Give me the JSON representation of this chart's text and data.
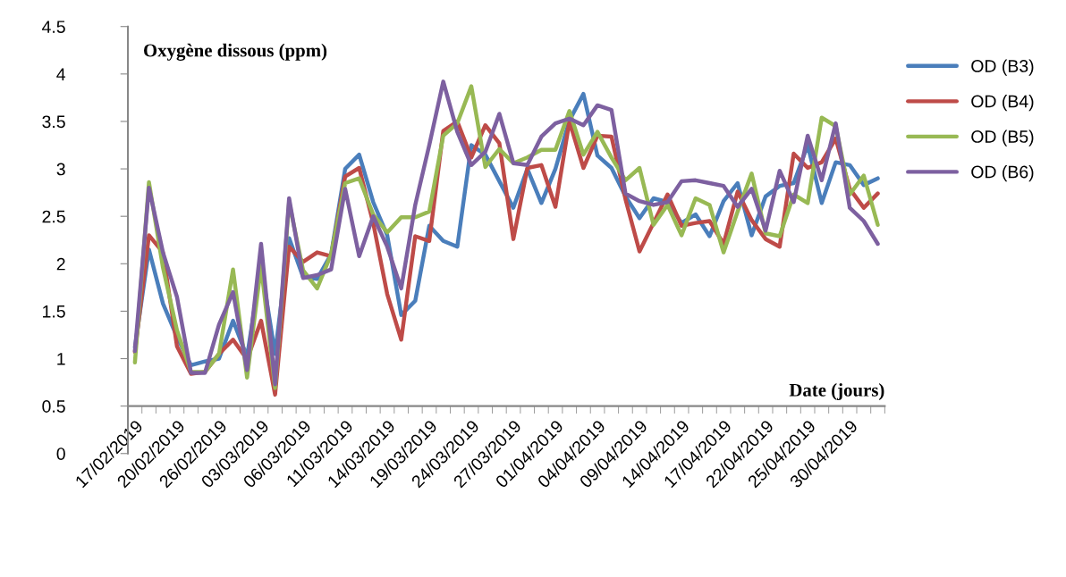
{
  "chart_data": {
    "type": "line",
    "title": "Oxygène dissous (ppm)",
    "xlabel": "Date (jours)",
    "categories": [
      "17/02/2019",
      null,
      null,
      "20/02/2019",
      null,
      null,
      "26/02/2019",
      null,
      null,
      "03/03/2019",
      null,
      null,
      "06/03/2019",
      null,
      null,
      "11/03/2019",
      null,
      null,
      "14/03/2019",
      null,
      null,
      "19/03/2019",
      null,
      null,
      "24/03/2019",
      null,
      null,
      "27/03/2019",
      null,
      null,
      "01/04/2019",
      null,
      null,
      "04/04/2019",
      null,
      null,
      "09/04/2019",
      null,
      null,
      "14/04/2019",
      null,
      null,
      "17/04/2019",
      null,
      null,
      "22/04/2019",
      null,
      null,
      "25/04/2019",
      null,
      null,
      "30/04/2019",
      null,
      null
    ],
    "series": [
      {
        "name": "OD (B3)",
        "color": "#4a7ebb",
        "values": [
          1.12,
          2.15,
          1.58,
          1.23,
          0.93,
          0.97,
          1.0,
          1.4,
          1.02,
          1.98,
          1.05,
          2.27,
          1.86,
          1.84,
          2.1,
          3.0,
          3.15,
          2.65,
          2.3,
          1.46,
          1.61,
          2.4,
          2.24,
          2.18,
          3.25,
          3.15,
          2.87,
          2.59,
          3.0,
          2.64,
          3.0,
          3.51,
          3.79,
          3.14,
          3.01,
          2.71,
          2.48,
          2.69,
          2.65,
          2.43,
          2.52,
          2.29,
          2.66,
          2.85,
          2.3,
          2.71,
          2.82,
          2.85,
          3.25,
          2.64,
          3.07,
          3.04,
          2.83,
          2.9
        ]
      },
      {
        "name": "OD (B4)",
        "color": "#be4b48",
        "values": [
          1.07,
          2.3,
          2.12,
          1.13,
          0.84,
          0.86,
          1.05,
          1.2,
          0.99,
          1.4,
          0.62,
          2.18,
          2.02,
          2.12,
          2.08,
          2.92,
          3.01,
          2.43,
          1.68,
          1.2,
          2.29,
          2.24,
          3.4,
          3.5,
          3.12,
          3.46,
          3.27,
          2.26,
          3.01,
          3.04,
          2.6,
          3.5,
          3.01,
          3.35,
          3.34,
          2.68,
          2.13,
          2.43,
          2.73,
          2.4,
          2.43,
          2.45,
          2.21,
          2.76,
          2.46,
          2.26,
          2.18,
          3.16,
          3.01,
          3.07,
          3.32,
          2.79,
          2.59,
          2.74
        ]
      },
      {
        "name": "OD (B5)",
        "color": "#98b954",
        "values": [
          0.96,
          2.86,
          1.96,
          1.3,
          0.86,
          0.86,
          1.05,
          1.94,
          0.8,
          1.98,
          0.69,
          2.65,
          1.93,
          1.74,
          2.1,
          2.85,
          2.9,
          2.52,
          2.33,
          2.49,
          2.49,
          2.55,
          3.35,
          3.48,
          3.87,
          3.02,
          3.21,
          3.06,
          3.12,
          3.2,
          3.2,
          3.61,
          3.15,
          3.39,
          3.12,
          2.88,
          3.01,
          2.41,
          2.62,
          2.3,
          2.69,
          2.62,
          2.12,
          2.55,
          2.95,
          2.32,
          2.29,
          2.73,
          2.64,
          3.54,
          3.45,
          2.73,
          2.93,
          2.41
        ]
      },
      {
        "name": "OD (B6)",
        "color": "#7d60a0",
        "values": [
          1.08,
          2.8,
          2.12,
          1.65,
          0.85,
          0.85,
          1.36,
          1.7,
          0.88,
          2.21,
          0.73,
          2.69,
          1.85,
          1.88,
          1.94,
          2.79,
          2.08,
          2.5,
          2.18,
          1.74,
          2.62,
          3.25,
          3.92,
          3.39,
          3.04,
          3.18,
          3.58,
          3.06,
          3.04,
          3.34,
          3.48,
          3.53,
          3.46,
          3.67,
          3.62,
          2.74,
          2.66,
          2.62,
          2.65,
          2.87,
          2.88,
          2.85,
          2.82,
          2.6,
          2.79,
          2.35,
          2.98,
          2.65,
          3.35,
          2.88,
          3.48,
          2.59,
          2.45,
          2.21
        ]
      }
    ],
    "ylim": [
      0,
      4.5
    ],
    "yticks": [
      0,
      0.5,
      1,
      1.5,
      2,
      2.5,
      3,
      3.5,
      4,
      4.5
    ],
    "grid": false,
    "legend": "right",
    "marker": "none",
    "line_style": "solid"
  }
}
